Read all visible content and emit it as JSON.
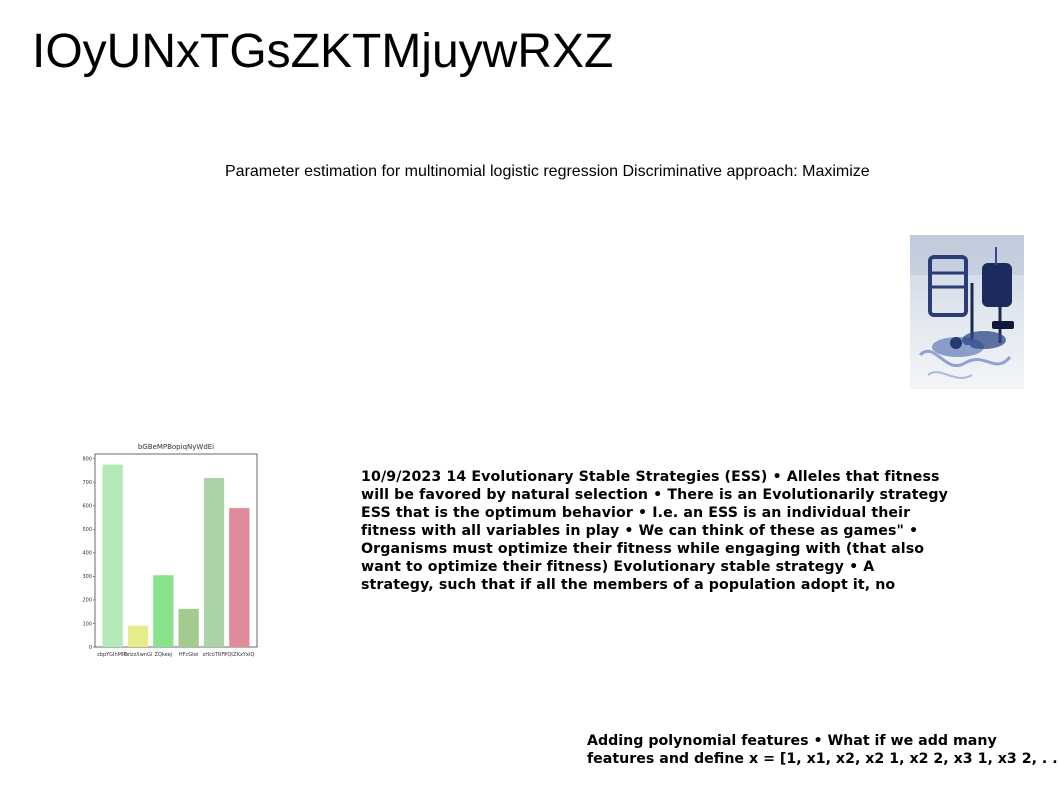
{
  "page": {
    "title": "IOyUNxTGsZKTMjuywRXZ",
    "subtitle": "Parameter estimation for multinomial logistic regression Discriminative approach: Maximize"
  },
  "ess_block": {
    "text": "10/9/2023 14 Evolutionary Stable Strategies (ESS) • Alleles that fitness will be favored by natural selection • There is an Evolutionarily strategy ESS that is the optimum behavior • I.e. an ESS is an individual their fitness with all variables in play • We can think of these as games\" • Organisms must optimize their fitness while engaging with (that also want to optimize their fitness) Evolutionary stable strategy • A strategy, such that if all the members of a population adopt it, no"
  },
  "poly_block": {
    "line1": "Adding polynomial features • What if we add many",
    "line2": "features and define x = [1, x1, x2, x2 1, x2 2, x3 1, x3 2, . ."
  },
  "photo": {
    "icon": "still-life-photo-icon"
  },
  "chart_data": {
    "type": "bar",
    "title": "bGBeMPBopiqNyWdEi",
    "xlabel": "",
    "ylabel": "",
    "categories": [
      "zbpYGIhMPh",
      "DrizzXwnGi",
      "ZQkeej",
      "HFcGtel",
      "xHcoTRFl",
      "PQtZKxYxlQ"
    ],
    "values": [
      775,
      90,
      305,
      162,
      718,
      590
    ],
    "colors": [
      "#b5e8b7",
      "#e6ec8c",
      "#89e38d",
      "#a3cb8e",
      "#acd2a9",
      "#de8b9a"
    ],
    "ylim": [
      0,
      820
    ],
    "yticks": [
      0,
      100,
      200,
      300,
      400,
      500,
      600,
      700,
      800
    ],
    "grid": false,
    "legend": "none"
  }
}
